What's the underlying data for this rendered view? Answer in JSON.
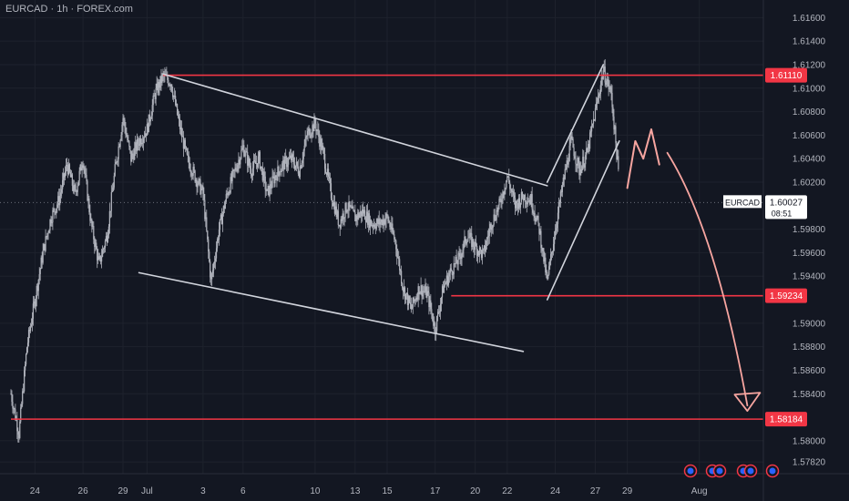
{
  "header": {
    "symbol_line": "EURCAD · 1h · FOREX.com"
  },
  "colors": {
    "background": "#131722",
    "grid": "#1e222d",
    "candle": "#b2b5be",
    "candle_green": "#26a69a",
    "resistance": "#f23645",
    "trendline": "#d1d4dc",
    "projection": "#f7a5a0",
    "axis_text": "#b2b5be",
    "price_badge": "#f23645",
    "event_icon": "#2962ff"
  },
  "chart_data": {
    "type": "candlestick",
    "title": "EURCAD · 1h · FOREX.com",
    "ylim": [
      1.5772,
      1.6175
    ],
    "y_ticks": [
      "1.61600",
      "1.61400",
      "1.61200",
      "1.61000",
      "1.60800",
      "1.60600",
      "1.60400",
      "1.60200",
      "1.59800",
      "1.59600",
      "1.59400",
      "1.59000",
      "1.58800",
      "1.58600",
      "1.58400",
      "1.58000",
      "1.57820"
    ],
    "x_ticks": [
      {
        "label": "24",
        "i": 3
      },
      {
        "label": "26",
        "i": 9
      },
      {
        "label": "29",
        "i": 14
      },
      {
        "label": "Jul",
        "i": 17
      },
      {
        "label": "3",
        "i": 24
      },
      {
        "label": "6",
        "i": 29
      },
      {
        "label": "10",
        "i": 38
      },
      {
        "label": "13",
        "i": 43
      },
      {
        "label": "15",
        "i": 47
      },
      {
        "label": "17",
        "i": 53
      },
      {
        "label": "20",
        "i": 58
      },
      {
        "label": "22",
        "i": 62
      },
      {
        "label": "24",
        "i": 68
      },
      {
        "label": "27",
        "i": 73
      },
      {
        "label": "29",
        "i": 77
      },
      {
        "label": "Aug",
        "i": 86
      }
    ],
    "x_count": 94,
    "price_path": [
      [
        0,
        1.584
      ],
      [
        1,
        1.5806
      ],
      [
        2,
        1.588
      ],
      [
        3,
        1.592
      ],
      [
        4,
        1.596
      ],
      [
        5,
        1.599
      ],
      [
        6,
        1.6005
      ],
      [
        7,
        1.6035
      ],
      [
        8,
        1.601
      ],
      [
        9,
        1.604
      ],
      [
        10,
        1.5985
      ],
      [
        11,
        1.595
      ],
      [
        12,
        1.5975
      ],
      [
        13,
        1.603
      ],
      [
        14,
        1.6075
      ],
      [
        15,
        1.604
      ],
      [
        16,
        1.6055
      ],
      [
        17,
        1.6065
      ],
      [
        18,
        1.6095
      ],
      [
        19,
        1.611
      ],
      [
        20,
        1.6105
      ],
      [
        21,
        1.607
      ],
      [
        22,
        1.604
      ],
      [
        23,
        1.6025
      ],
      [
        24,
        1.601
      ],
      [
        25,
        1.5935
      ],
      [
        26,
        1.598
      ],
      [
        27,
        1.601
      ],
      [
        28,
        1.603
      ],
      [
        29,
        1.605
      ],
      [
        30,
        1.603
      ],
      [
        31,
        1.604
      ],
      [
        32,
        1.601
      ],
      [
        33,
        1.6025
      ],
      [
        34,
        1.6035
      ],
      [
        35,
        1.604
      ],
      [
        36,
        1.603
      ],
      [
        37,
        1.606
      ],
      [
        38,
        1.607
      ],
      [
        39,
        1.6045
      ],
      [
        40,
        1.601
      ],
      [
        41,
        1.5985
      ],
      [
        42,
        1.6
      ],
      [
        43,
        1.599
      ],
      [
        44,
        1.5995
      ],
      [
        45,
        1.5985
      ],
      [
        46,
        1.5985
      ],
      [
        47,
        1.599
      ],
      [
        48,
        1.597
      ],
      [
        49,
        1.593
      ],
      [
        50,
        1.5912
      ],
      [
        51,
        1.593
      ],
      [
        52,
        1.5925
      ],
      [
        53,
        1.5895
      ],
      [
        54,
        1.593
      ],
      [
        55,
        1.5945
      ],
      [
        56,
        1.5955
      ],
      [
        57,
        1.5975
      ],
      [
        58,
        1.5965
      ],
      [
        59,
        1.5958
      ],
      [
        60,
        1.5985
      ],
      [
        61,
        1.6
      ],
      [
        62,
        1.6025
      ],
      [
        63,
        1.6
      ],
      [
        64,
        1.6008
      ],
      [
        65,
        1.6005
      ],
      [
        66,
        1.598
      ],
      [
        67,
        1.5935
      ],
      [
        68,
        1.598
      ],
      [
        69,
        1.602
      ],
      [
        70,
        1.6055
      ],
      [
        71,
        1.603
      ],
      [
        72,
        1.6045
      ],
      [
        73,
        1.608
      ],
      [
        74,
        1.6115
      ],
      [
        75,
        1.6095
      ],
      [
        76,
        1.602
      ]
    ],
    "current_price": 1.60027,
    "levels": [
      {
        "price": 1.6111,
        "label": "1.61110",
        "from_i": 19
      },
      {
        "price": 1.59234,
        "label": "1.59234",
        "from_i": 55
      },
      {
        "price": 1.58184,
        "label": "1.58184",
        "from_i": 0
      }
    ],
    "trendlines": [
      {
        "p1": [
          19,
          1.6112
        ],
        "p2": [
          67,
          1.6017
        ]
      },
      {
        "p1": [
          16,
          1.5943
        ],
        "p2": [
          64,
          1.5876
        ]
      },
      {
        "p1": [
          67,
          1.602
        ],
        "p2": [
          74,
          1.612
        ]
      },
      {
        "p1": [
          67,
          1.592
        ],
        "p2": [
          76,
          1.6055
        ]
      }
    ],
    "drawing_path": [
      [
        77,
        1.6015
      ],
      [
        78,
        1.6055
      ],
      [
        79,
        1.604
      ],
      [
        80,
        1.6065
      ],
      [
        81,
        1.6035
      ]
    ],
    "projection_path": [
      [
        82,
        1.6045
      ],
      [
        88,
        1.598
      ],
      [
        92,
        1.583
      ]
    ],
    "current_badge": {
      "symbol": "EURCAD",
      "price": "1.60027",
      "countdown": "08:51"
    }
  }
}
